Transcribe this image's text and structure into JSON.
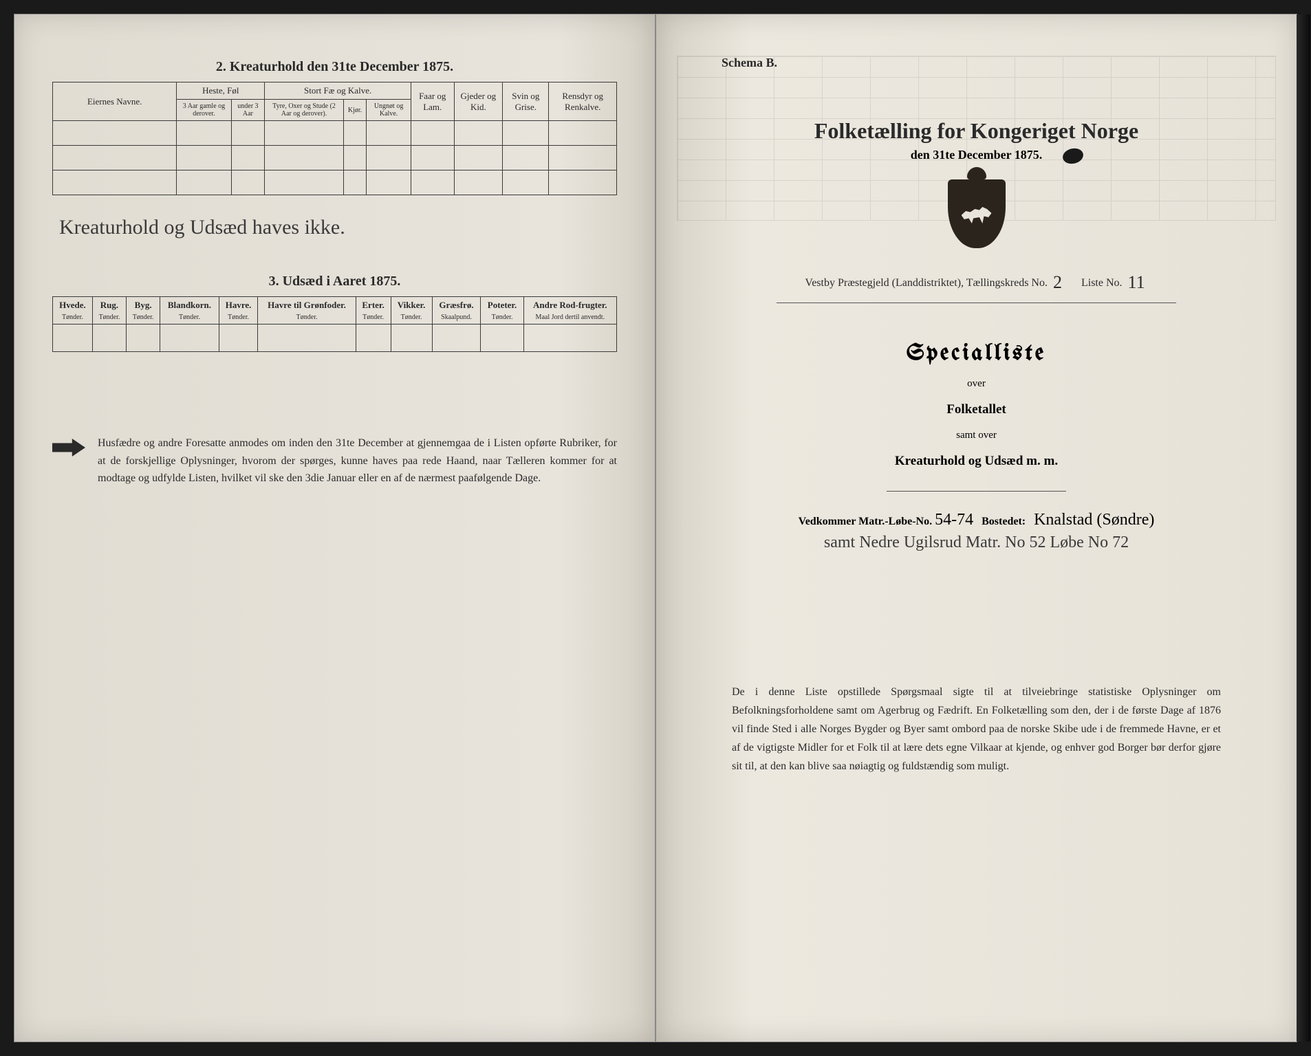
{
  "left": {
    "section2_title": "2.  Kreaturhold den 31te December 1875.",
    "t1": {
      "col_eier": "Eiernes Navne.",
      "grp_heste": "Heste, Føl",
      "grp_stort": "Stort Fæ og Kalve.",
      "col_faar": "Faar og Lam.",
      "col_gjed": "Gjeder og Kid.",
      "col_svin": "Svin og Grise.",
      "col_ren": "Rensdyr og Renkalve.",
      "sub_h1": "3 Aar gamle og derover.",
      "sub_h2": "under 3 Aar",
      "sub_s1": "Tyre, Oxer og Stude (2 Aar og derover).",
      "sub_s2": "Kjør.",
      "sub_s3": "Ungnøt og Kalve."
    },
    "handwritten": "Kreaturhold og Udsæd haves ikke.",
    "section3_title": "3.  Udsæd i Aaret 1875.",
    "t3": {
      "cols": [
        "Hvede.",
        "Rug.",
        "Byg.",
        "Blandkorn.",
        "Havre.",
        "Havre til Grønfoder.",
        "Erter.",
        "Vikker.",
        "Græsfrø.",
        "Poteter.",
        "Andre Rod-frugter."
      ],
      "units": [
        "Tønder.",
        "Tønder.",
        "Tønder.",
        "Tønder.",
        "Tønder.",
        "Tønder.",
        "Tønder.",
        "Tønder.",
        "Skaalpund.",
        "Tønder.",
        "Maal Jord dertil anvendt."
      ]
    },
    "footnote": "Husfædre og andre Foresatte anmodes om inden den 31te December at gjennemgaa de i Listen opførte Rubriker, for at de forskjellige Oplysninger, hvorom der spørges, kunne haves paa rede Haand, naar Tælleren kommer for at modtage og udfylde Listen, hvilket vil ske den 3die Januar eller en af de nærmest paafølgende Dage."
  },
  "right": {
    "schema": "Schema B.",
    "title": "Folketælling for Kongeriget Norge",
    "subtitle": "den 31te December 1875.",
    "kreds_pre": "Vestby Præstegjeld (Landdistriktet), Tællingskreds No.",
    "kreds_no": "2",
    "liste_pre": "Liste No.",
    "liste_no": "11",
    "specialliste": "Specialliste",
    "over": "over",
    "folketallet": "Folketallet",
    "samt": "samt over",
    "kreatur": "Kreaturhold og Udsæd m. m.",
    "vedk_pre": "Vedkommer Matr.-Løbe-No.",
    "matr_no": "54-74",
    "bostedet_lbl": "Bostedet:",
    "bostedet": "Knalstad (Søndre)",
    "vedk_line2": "samt Nedre Ugilsrud Matr. No 52 Løbe No 72",
    "footnote": "De i denne Liste opstillede Spørgsmaal sigte til at tilveiebringe statistiske Oplysninger om Befolkningsforholdene samt om Agerbrug og Fædrift.  En Folketælling som den, der i de første Dage af 1876 vil finde Sted i alle Norges Bygder og Byer samt ombord paa de norske Skibe ude i de fremmede Havne, er et af de vigtigste Midler for et Folk til at lære dets egne Vilkaar at kjende, og enhver god Borger bør derfor gjøre sit til, at den kan blive saa nøiagtig og fuldstændig som muligt."
  }
}
